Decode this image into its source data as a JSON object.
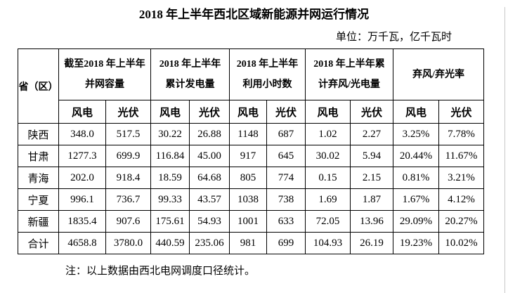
{
  "page": {
    "title": "2018 年上半年西北区域新能源并网运行情况",
    "unit_note": "单位：万千瓦，亿千瓦时",
    "footnote": "注：以上数据由西北电网调度口径统计。"
  },
  "colors": {
    "text": "#000000",
    "border": "#000000",
    "background": "#ffffff",
    "page_edge": "#c9c9c9"
  },
  "table": {
    "corner_header": "省（区）",
    "groups": [
      {
        "lines": [
          "截至2018 年上半年",
          "并网容量"
        ]
      },
      {
        "lines": [
          "2018 年上半年",
          "累计发电量"
        ]
      },
      {
        "lines": [
          "2018 年上半年",
          "利用小时数"
        ]
      },
      {
        "lines": [
          "2018 年上半年累",
          "计弃风/光电量"
        ]
      },
      {
        "lines": [
          "弃风/弃光率"
        ]
      }
    ],
    "sub_wind": "风电",
    "sub_solar": "光伏",
    "rows": [
      {
        "province": "陕西",
        "values": [
          "348.0",
          "517.5",
          "30.22",
          "26.88",
          "1148",
          "687",
          "1.02",
          "2.27",
          "3.25%",
          "7.78%"
        ]
      },
      {
        "province": "甘肃",
        "values": [
          "1277.3",
          "699.9",
          "116.84",
          "45.00",
          "917",
          "645",
          "30.02",
          "5.94",
          "20.44%",
          "11.67%"
        ]
      },
      {
        "province": "青海",
        "values": [
          "202.0",
          "918.4",
          "18.59",
          "64.68",
          "805",
          "774",
          "0.15",
          "2.15",
          "0.81%",
          "3.21%"
        ]
      },
      {
        "province": "宁夏",
        "values": [
          "996.1",
          "736.7",
          "99.33",
          "43.57",
          "1038",
          "738",
          "1.69",
          "1.87",
          "1.67%",
          "4.12%"
        ]
      },
      {
        "province": "新疆",
        "values": [
          "1835.4",
          "907.6",
          "175.61",
          "54.93",
          "1001",
          "633",
          "72.05",
          "13.96",
          "29.09%",
          "20.27%"
        ]
      },
      {
        "province": "合计",
        "values": [
          "4658.8",
          "3780.0",
          "440.59",
          "235.06",
          "981",
          "699",
          "104.93",
          "26.19",
          "19.23%",
          "10.02%"
        ]
      }
    ]
  }
}
